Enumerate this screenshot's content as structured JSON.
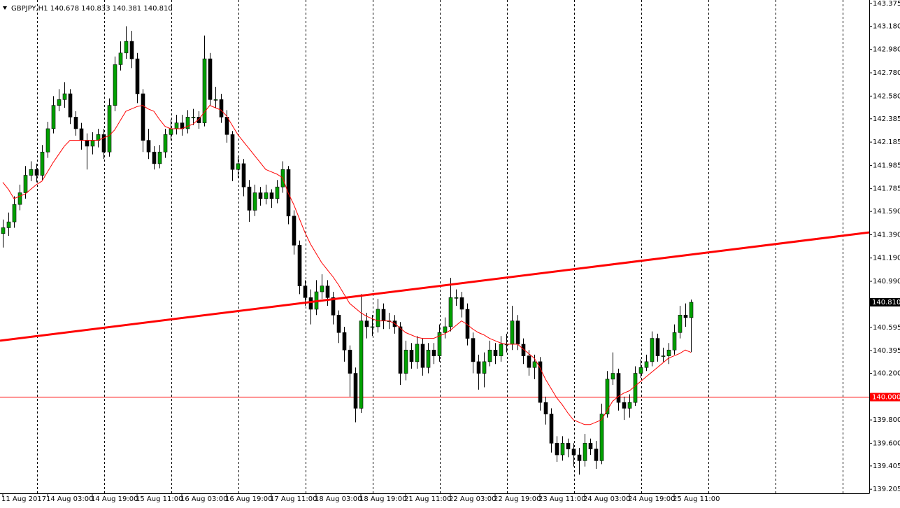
{
  "chart_data": {
    "type": "candlestick",
    "title": "GBPJPY,H1  140.678 140.833 140.381 140.810",
    "categories": [
      "11 Aug 2017",
      null,
      null,
      null,
      null,
      null,
      null,
      null,
      "14 Aug 03:00",
      null,
      null,
      null,
      null,
      null,
      null,
      null,
      "14 Aug 19:00",
      null,
      null,
      null,
      null,
      null,
      null,
      null,
      "15 Aug 11:00",
      null,
      null,
      null,
      null,
      null,
      null,
      null,
      "16 Aug 03:00",
      null,
      null,
      null,
      null,
      null,
      null,
      null,
      "16 Aug 19:00",
      null,
      null,
      null,
      null,
      null,
      null,
      null,
      "17 Aug 11:00",
      null,
      null,
      null,
      null,
      null,
      null,
      null,
      "18 Aug 03:00",
      null,
      null,
      null,
      null,
      null,
      null,
      null,
      "18 Aug 19:00",
      null,
      null,
      null,
      null,
      null,
      null,
      null,
      "21 Aug 11:00",
      null,
      null,
      null,
      null,
      null,
      null,
      null,
      "22 Aug 03:00",
      null,
      null,
      null,
      null,
      null,
      null,
      null,
      "22 Aug 19:00",
      null,
      null,
      null,
      null,
      null,
      null,
      null,
      "23 Aug 11:00",
      null,
      null,
      null,
      null,
      null,
      null,
      null,
      "24 Aug 03:00",
      null,
      null,
      null,
      null,
      null,
      null,
      null,
      "24 Aug 19:00",
      null,
      null,
      null,
      null,
      null,
      null,
      null,
      "25 Aug 11:00",
      null,
      null,
      null
    ],
    "open": [
      141.4,
      141.45,
      141.5,
      141.65,
      141.75,
      141.9,
      141.95,
      141.9,
      142.1,
      142.3,
      142.5,
      142.55,
      142.6,
      142.4,
      142.3,
      142.2,
      142.15,
      142.2,
      142.25,
      142.1,
      142.5,
      142.85,
      142.95,
      143.05,
      142.9,
      142.6,
      142.2,
      142.1,
      142.0,
      142.1,
      142.25,
      142.3,
      142.35,
      142.3,
      142.4,
      142.4,
      142.35,
      142.9,
      142.55,
      142.55,
      142.4,
      142.25,
      141.95,
      142.0,
      141.8,
      141.6,
      141.75,
      141.7,
      141.75,
      141.7,
      141.8,
      141.95,
      141.55,
      141.3,
      140.95,
      140.85,
      140.75,
      140.9,
      140.95,
      140.85,
      140.7,
      140.55,
      140.4,
      140.2,
      139.9,
      140.65,
      140.6,
      140.6,
      140.75,
      140.65,
      140.65,
      140.6,
      140.2,
      140.4,
      140.3,
      140.45,
      140.25,
      140.4,
      140.35,
      140.55,
      140.6,
      140.85,
      140.85,
      140.75,
      140.5,
      140.3,
      140.2,
      140.3,
      140.4,
      140.35,
      140.45,
      140.45,
      140.65,
      140.45,
      140.35,
      140.25,
      140.3,
      139.95,
      139.85,
      139.6,
      139.5,
      139.6,
      139.55,
      139.5,
      139.45,
      139.6,
      139.55,
      139.45,
      139.85,
      140.15,
      140.2,
      139.95,
      139.9,
      139.95,
      140.2,
      140.25,
      140.3,
      140.5,
      140.35,
      140.35,
      140.4,
      140.55,
      140.7,
      140.678
    ],
    "high": [
      141.52,
      141.58,
      141.72,
      141.82,
      141.98,
      142.02,
      142.0,
      142.16,
      142.36,
      142.58,
      142.64,
      142.7,
      142.64,
      142.45,
      142.35,
      142.26,
      142.27,
      142.3,
      142.3,
      142.56,
      142.92,
      143.05,
      143.18,
      143.14,
      142.95,
      142.64,
      142.3,
      142.15,
      142.16,
      142.3,
      142.38,
      142.42,
      142.42,
      142.46,
      142.47,
      142.45,
      143.1,
      142.95,
      142.66,
      142.6,
      142.46,
      142.28,
      142.06,
      142.04,
      141.86,
      141.82,
      141.8,
      141.82,
      141.78,
      141.86,
      142.02,
      141.98,
      141.6,
      141.34,
      141.0,
      140.92,
      141.0,
      141.05,
      141.0,
      140.9,
      140.74,
      140.6,
      140.44,
      140.25,
      140.88,
      140.72,
      140.7,
      140.84,
      140.8,
      140.72,
      140.7,
      140.64,
      140.48,
      140.46,
      140.52,
      140.5,
      140.46,
      140.46,
      140.62,
      140.68,
      141.02,
      140.92,
      140.9,
      140.8,
      140.55,
      140.36,
      140.38,
      140.48,
      140.46,
      140.52,
      140.54,
      140.78,
      140.7,
      140.5,
      140.4,
      140.36,
      140.34,
      140.0,
      139.9,
      139.66,
      139.66,
      139.64,
      139.6,
      139.56,
      139.68,
      139.64,
      139.62,
      139.94,
      140.22,
      140.38,
      140.24,
      140.0,
      140.02,
      140.26,
      140.32,
      140.36,
      140.56,
      140.54,
      140.42,
      140.46,
      140.62,
      140.78,
      140.8,
      140.833
    ],
    "low": [
      141.28,
      141.38,
      141.45,
      141.6,
      141.7,
      141.85,
      141.84,
      141.86,
      142.05,
      142.26,
      142.45,
      142.48,
      142.34,
      142.24,
      142.12,
      141.95,
      142.08,
      142.14,
      142.04,
      142.06,
      142.45,
      142.8,
      142.9,
      142.82,
      142.52,
      142.1,
      142.04,
      141.95,
      141.96,
      142.05,
      142.2,
      142.25,
      142.24,
      142.26,
      142.33,
      142.3,
      142.32,
      142.5,
      142.48,
      142.35,
      142.18,
      141.85,
      141.88,
      141.72,
      141.5,
      141.55,
      141.64,
      141.65,
      141.62,
      141.66,
      141.75,
      141.48,
      141.22,
      140.88,
      140.78,
      140.62,
      140.7,
      140.84,
      140.78,
      140.62,
      140.46,
      140.3,
      140.0,
      139.78,
      139.86,
      140.5,
      140.52,
      140.55,
      140.58,
      140.58,
      140.54,
      140.1,
      140.14,
      140.24,
      140.24,
      140.18,
      140.2,
      140.28,
      140.3,
      140.5,
      140.56,
      140.78,
      140.68,
      140.44,
      140.2,
      140.06,
      140.08,
      140.26,
      140.28,
      140.3,
      140.38,
      140.4,
      140.4,
      140.28,
      140.18,
      140.15,
      139.88,
      139.76,
      139.52,
      139.44,
      139.45,
      139.48,
      139.4,
      139.33,
      139.4,
      139.5,
      139.38,
      139.42,
      139.82,
      140.1,
      139.88,
      139.8,
      139.82,
      139.92,
      140.16,
      140.22,
      140.26,
      140.3,
      140.3,
      140.28,
      140.36,
      140.5,
      140.6,
      140.381
    ],
    "close": [
      141.45,
      141.5,
      141.65,
      141.75,
      141.9,
      141.95,
      141.9,
      142.1,
      142.3,
      142.5,
      142.55,
      142.6,
      142.4,
      142.3,
      142.2,
      142.15,
      142.2,
      142.25,
      142.1,
      142.5,
      142.85,
      142.95,
      143.05,
      142.9,
      142.6,
      142.2,
      142.1,
      142.0,
      142.1,
      142.25,
      142.3,
      142.35,
      142.3,
      142.4,
      142.4,
      142.35,
      142.9,
      142.55,
      142.55,
      142.4,
      142.25,
      141.95,
      142.0,
      141.8,
      141.6,
      141.75,
      141.7,
      141.75,
      141.7,
      141.8,
      141.95,
      141.55,
      141.3,
      140.95,
      140.85,
      140.75,
      140.9,
      140.95,
      140.85,
      140.7,
      140.55,
      140.4,
      140.2,
      139.9,
      140.65,
      140.6,
      140.6,
      140.75,
      140.65,
      140.65,
      140.6,
      140.2,
      140.4,
      140.3,
      140.45,
      140.25,
      140.4,
      140.35,
      140.55,
      140.6,
      140.85,
      140.85,
      140.75,
      140.5,
      140.3,
      140.2,
      140.3,
      140.4,
      140.35,
      140.45,
      140.45,
      140.65,
      140.45,
      140.35,
      140.25,
      140.3,
      139.95,
      139.85,
      139.6,
      139.5,
      139.6,
      139.55,
      139.5,
      139.45,
      139.6,
      139.55,
      139.45,
      139.85,
      140.15,
      140.2,
      139.95,
      139.9,
      139.95,
      140.2,
      140.25,
      140.3,
      140.5,
      140.35,
      140.35,
      140.4,
      140.55,
      140.7,
      140.678,
      140.81
    ],
    "up_color": "#00a000",
    "down_color": "#000000",
    "ma": {
      "color": "#ff0000",
      "values": [
        141.84,
        141.78,
        141.7,
        141.72,
        141.74,
        141.78,
        141.82,
        141.85,
        141.93,
        142.01,
        142.08,
        142.15,
        142.2,
        142.2,
        142.2,
        142.2,
        142.2,
        142.2,
        142.22,
        142.24,
        142.29,
        142.37,
        142.45,
        142.47,
        142.49,
        142.5,
        142.47,
        142.45,
        142.38,
        142.32,
        142.3,
        142.3,
        142.3,
        142.32,
        142.34,
        142.38,
        142.44,
        142.5,
        142.48,
        142.46,
        142.41,
        142.33,
        142.25,
        142.19,
        142.13,
        142.07,
        142.01,
        141.95,
        141.93,
        141.91,
        141.88,
        141.75,
        141.65,
        141.53,
        141.41,
        141.31,
        141.23,
        141.15,
        141.09,
        141.03,
        140.96,
        140.88,
        140.8,
        140.76,
        140.72,
        140.69,
        140.67,
        140.65,
        140.65,
        140.65,
        140.63,
        140.59,
        140.55,
        140.53,
        140.51,
        140.5,
        140.5,
        140.5,
        140.52,
        140.54,
        140.57,
        140.61,
        140.65,
        140.62,
        140.58,
        140.55,
        140.53,
        140.5,
        140.48,
        140.46,
        140.45,
        140.45,
        140.45,
        140.41,
        140.37,
        140.33,
        140.25,
        140.15,
        140.07,
        139.99,
        139.93,
        139.86,
        139.8,
        139.78,
        139.76,
        139.76,
        139.78,
        139.8,
        139.88,
        139.96,
        140.0,
        140.03,
        140.05,
        140.09,
        140.13,
        140.17,
        140.21,
        140.25,
        140.29,
        140.33,
        140.35,
        140.37,
        140.4,
        140.38
      ]
    },
    "trendline": {
      "color": "#ff0000",
      "values": [
        140.48,
        141.41
      ]
    },
    "hline": {
      "value": 140,
      "label": "140.000",
      "color": "#ff0000"
    },
    "last_price": {
      "value": 140.81,
      "label": "140.810"
    },
    "ylim": [
      139.17,
      143.405
    ],
    "yticks": [
      143.375,
      {
        "value": 143.18,
        "label": "143.180"
      },
      {
        "value": 142.98,
        "label": "142.980"
      },
      {
        "value": 142.78,
        "label": "142.780"
      },
      {
        "value": 142.58,
        "label": "142.580"
      },
      142.385,
      142.185,
      141.985,
      141.785,
      {
        "value": 141.59,
        "label": "141.590"
      },
      {
        "value": 141.39,
        "label": "141.390"
      },
      {
        "value": 141.19,
        "label": "141.190"
      },
      {
        "value": 140.99,
        "label": "140.990"
      },
      140.595,
      140.395,
      {
        "value": 140.2,
        "label": "140.200"
      },
      {
        "value": 139.8,
        "label": "139.800"
      },
      {
        "value": 139.6,
        "label": "139.600"
      },
      139.405,
      139.205
    ]
  }
}
